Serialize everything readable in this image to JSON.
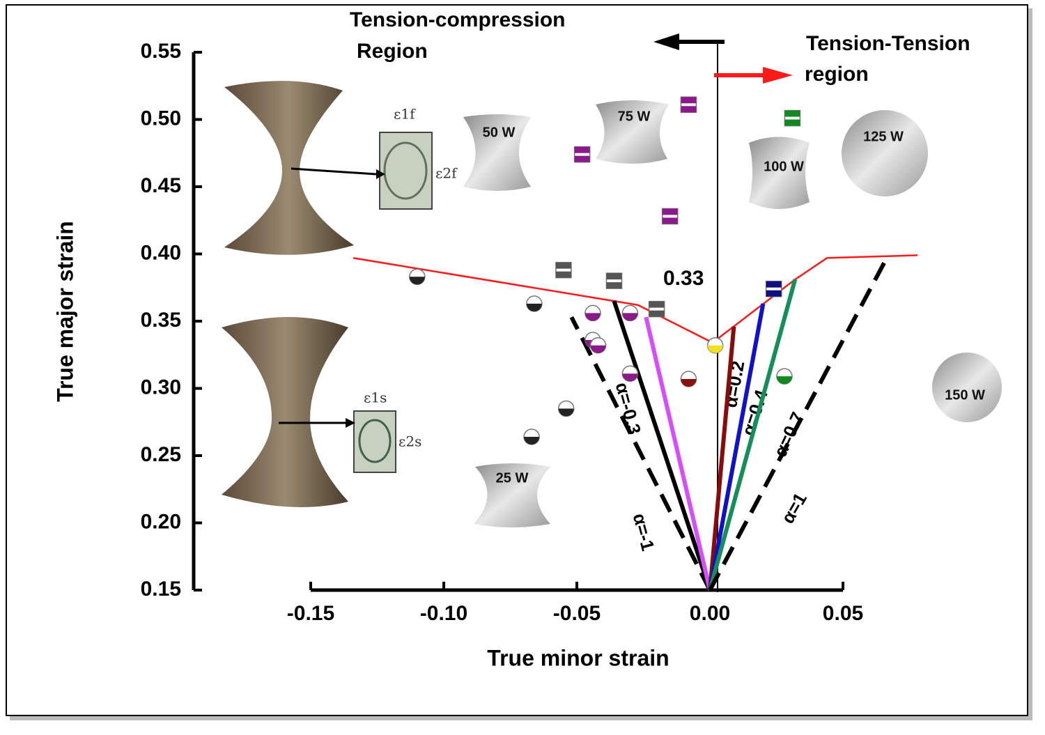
{
  "chart_data": {
    "type": "scatter",
    "xlabel": "True minor strain",
    "ylabel": "True major strain",
    "xlim": [
      -0.15,
      0.05
    ],
    "ylim": [
      0.15,
      0.55
    ],
    "xticks": [
      -0.15,
      {
        "value": -0.1,
        "label": "-0.10"
      },
      -0.05,
      {
        "value": 0,
        "label": "0.00"
      },
      0.05
    ],
    "yticks": [
      0.15,
      {
        "value": 0.2,
        "label": "0.20"
      },
      0.25,
      {
        "value": 0.3,
        "label": "0.30"
      },
      0.35,
      {
        "value": 0.4,
        "label": "0.40"
      },
      0.45,
      {
        "value": 0.5,
        "label": "0.50"
      },
      0.55
    ],
    "series": [
      {
        "kind": "line",
        "color": "#ff1a1a",
        "width": 2.5,
        "x": [
          -0.134,
          -0.027,
          0.001,
          0.032,
          0.044,
          0.078
        ],
        "values": [
          0.397,
          0.362,
          0.334,
          0.381,
          0.397,
          0.399
        ]
      },
      {
        "kind": "line",
        "color": "#000000",
        "width": 6,
        "dash": true,
        "x": [
          0,
          -0.052
        ],
        "values": [
          0.15,
          0.353
        ]
      },
      {
        "kind": "line",
        "color": "#000000",
        "width": 6,
        "x": [
          0,
          -0.036
        ],
        "values": [
          0.15,
          0.365
        ]
      },
      {
        "kind": "line",
        "color": "#d94bff",
        "width": 6,
        "x": [
          0,
          -0.024
        ],
        "values": [
          0.15,
          0.353
        ]
      },
      {
        "kind": "line",
        "color": "#8b0a0a",
        "width": 6,
        "x": [
          0,
          0.009
        ],
        "values": [
          0.15,
          0.346
        ]
      },
      {
        "kind": "line",
        "color": "#1010d0",
        "width": 6,
        "x": [
          0,
          0.02
        ],
        "values": [
          0.15,
          0.363
        ]
      },
      {
        "kind": "line",
        "color": "#12905a",
        "width": 6,
        "x": [
          0,
          0.032
        ],
        "values": [
          0.15,
          0.381
        ]
      },
      {
        "kind": "line",
        "color": "#000000",
        "width": 6,
        "dash": true,
        "x": [
          0,
          0.067
        ],
        "values": [
          0.15,
          0.399
        ]
      },
      {
        "kind": "circle",
        "color": "#222222",
        "x": [
          -0.11,
          -0.066,
          -0.054,
          -0.067
        ],
        "values": [
          0.383,
          0.363,
          0.285,
          0.264
        ]
      },
      {
        "kind": "circle",
        "color": "#8a1a8a",
        "x": [
          -0.044,
          -0.044,
          -0.042,
          -0.03,
          -0.03
        ],
        "values": [
          0.356,
          0.336,
          0.332,
          0.356,
          0.311
        ]
      },
      {
        "kind": "circle",
        "color": "#8b1010",
        "x": [
          -0.008
        ],
        "values": [
          0.307
        ]
      },
      {
        "kind": "circle",
        "color": "#f0e020",
        "x": [
          0.002
        ],
        "values": [
          0.332
        ]
      },
      {
        "kind": "circle",
        "color": "#108a20",
        "x": [
          0.028
        ],
        "values": [
          0.309
        ]
      },
      {
        "kind": "square",
        "color": "#555555",
        "x": [
          -0.055,
          -0.036,
          -0.02
        ],
        "values": [
          0.388,
          0.38,
          0.359
        ]
      },
      {
        "kind": "square",
        "color": "#8a1a8a",
        "x": [
          -0.048,
          -0.015,
          -0.008
        ],
        "values": [
          0.474,
          0.428,
          0.511
        ]
      },
      {
        "kind": "square",
        "color": "#101080",
        "x": [
          0.024
        ],
        "values": [
          0.374
        ]
      },
      {
        "kind": "square",
        "color": "#108a20",
        "x": [
          0.031
        ],
        "values": [
          0.501
        ]
      }
    ],
    "annotations": [
      "Tension-compression",
      "Region",
      "Tension-Tension",
      "region",
      "0.33",
      "α=-1",
      "α=-0.3",
      "α=0.2",
      "α=0.4",
      "α=0.7",
      "α=1"
    ],
    "specimens": [
      "25 W",
      "50 W",
      "75 W",
      "100 W",
      "125 W",
      "150 W"
    ],
    "strain_labels": [
      "ε1f",
      "ε2f",
      "ε1s",
      "ε2s"
    ]
  }
}
